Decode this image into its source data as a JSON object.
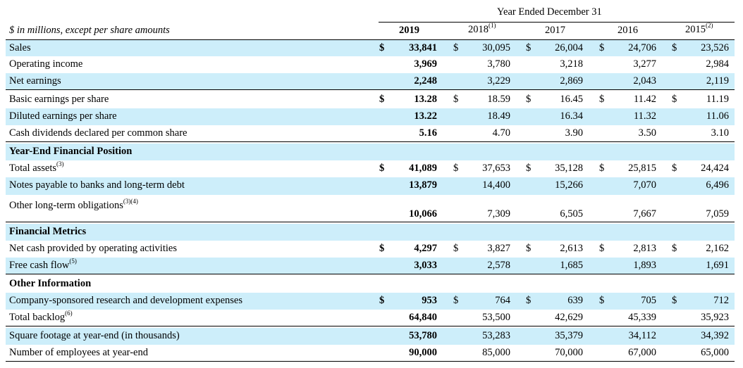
{
  "header": {
    "period_title": "Year Ended December 31",
    "units_label": "$ in millions, except per share amounts",
    "years": [
      {
        "label": "2019",
        "note": ""
      },
      {
        "label": "2018",
        "note": "(1)"
      },
      {
        "label": "2017",
        "note": ""
      },
      {
        "label": "2016",
        "note": ""
      },
      {
        "label": "2015",
        "note": "(2)"
      }
    ]
  },
  "currency_symbol": "$",
  "rows": [
    {
      "label": "Sales",
      "note": "",
      "values": [
        "33,841",
        "30,095",
        "26,004",
        "24,706",
        "23,526"
      ],
      "dollar": true
    },
    {
      "label": "Operating income",
      "note": "",
      "values": [
        "3,969",
        "3,780",
        "3,218",
        "3,277",
        "2,984"
      ]
    },
    {
      "label": "Net earnings",
      "note": "",
      "values": [
        "2,248",
        "3,229",
        "2,869",
        "2,043",
        "2,119"
      ]
    },
    {
      "label": "Basic earnings per share",
      "note": "",
      "values": [
        "13.28",
        "18.59",
        "16.45",
        "11.42",
        "11.19"
      ],
      "dollar": true
    },
    {
      "label": "Diluted earnings per share",
      "note": "",
      "values": [
        "13.22",
        "18.49",
        "16.34",
        "11.32",
        "11.06"
      ]
    },
    {
      "label": "Cash dividends declared per common share",
      "note": "",
      "values": [
        "5.16",
        "4.70",
        "3.90",
        "3.50",
        "3.10"
      ]
    },
    {
      "label": "Year-End Financial Position",
      "section": true
    },
    {
      "label": "Total assets",
      "note": "(3)",
      "values": [
        "41,089",
        "37,653",
        "35,128",
        "25,815",
        "24,424"
      ],
      "dollar": true
    },
    {
      "label": "Notes payable to banks and long-term debt",
      "note": "",
      "values": [
        "13,879",
        "14,400",
        "15,266",
        "7,070",
        "6,496"
      ]
    },
    {
      "label": "Other long-term obligations",
      "note": "(3)(4)",
      "values": [
        "10,066",
        "7,309",
        "6,505",
        "7,667",
        "7,059"
      ]
    },
    {
      "label": "Financial Metrics",
      "section": true
    },
    {
      "label": "Net cash provided by operating activities",
      "note": "",
      "values": [
        "4,297",
        "3,827",
        "2,613",
        "2,813",
        "2,162"
      ],
      "dollar": true
    },
    {
      "label": "Free cash flow",
      "note": "(5)",
      "values": [
        "3,033",
        "2,578",
        "1,685",
        "1,893",
        "1,691"
      ]
    },
    {
      "label": "Other Information",
      "section": true
    },
    {
      "label": "Company-sponsored research and development expenses",
      "note": "",
      "values": [
        "953",
        "764",
        "639",
        "705",
        "712"
      ],
      "dollar": true
    },
    {
      "label": "Total backlog",
      "note": "(6)",
      "values": [
        "64,840",
        "53,500",
        "42,629",
        "45,339",
        "35,923"
      ]
    },
    {
      "label": "Square footage at year-end (in thousands)",
      "note": "",
      "values": [
        "53,780",
        "53,283",
        "35,379",
        "34,112",
        "34,392"
      ]
    },
    {
      "label": "Number of employees at year-end",
      "note": "",
      "values": [
        "90,000",
        "85,000",
        "70,000",
        "67,000",
        "65,000"
      ]
    }
  ]
}
